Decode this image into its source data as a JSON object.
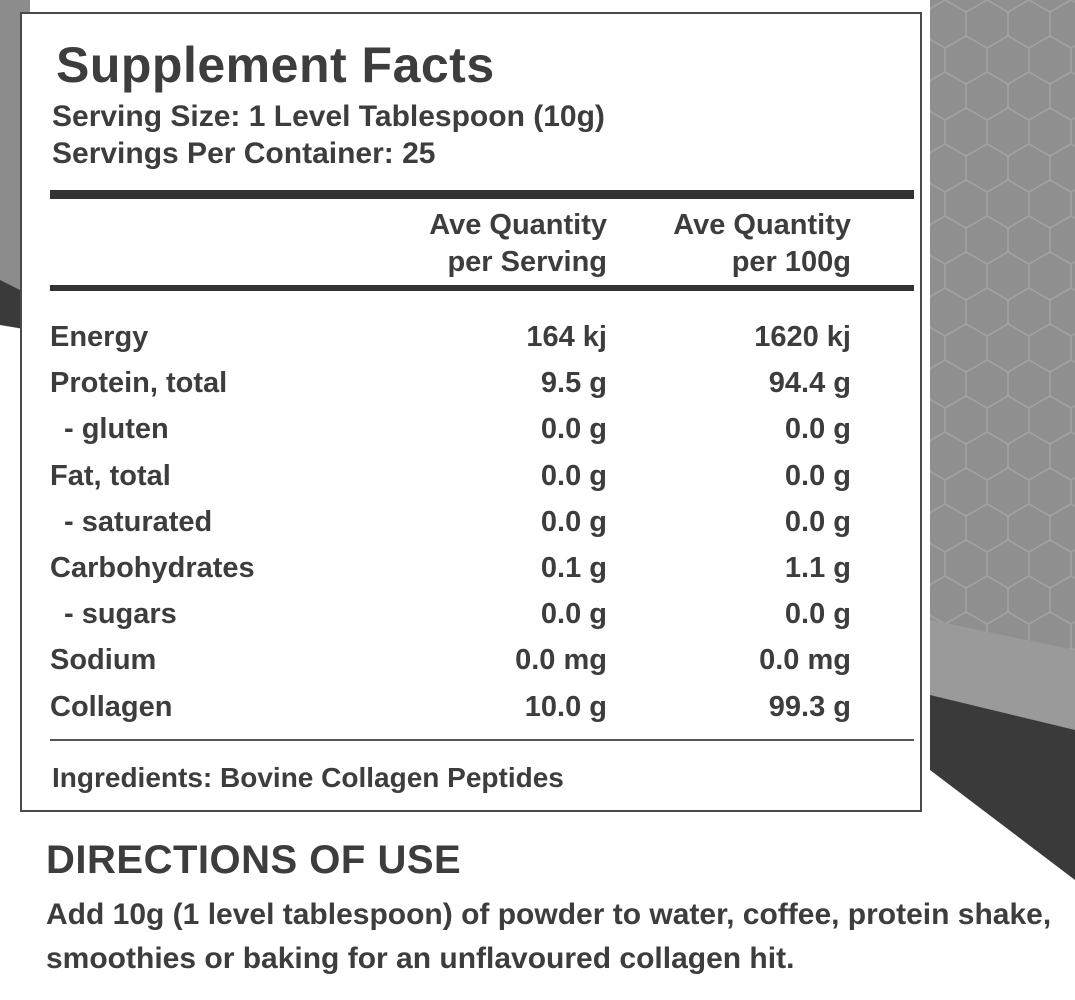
{
  "label": {
    "title": "Supplement Facts",
    "serving_size": "Serving Size: 1 Level Tablespoon (10g)",
    "servings_per_container": "Servings Per Container: 25",
    "columns": {
      "per_serving_line1": "Ave Quantity",
      "per_serving_line2": "per Serving",
      "per_100g_line1": "Ave Quantity",
      "per_100g_line2": "per 100g"
    },
    "rows": [
      {
        "name": "Energy",
        "per_serving": "164 kj",
        "per_100g": "1620 kj"
      },
      {
        "name": "Protein, total",
        "per_serving": "9.5 g",
        "per_100g": "94.4 g"
      },
      {
        "name": "- gluten",
        "per_serving": "0.0 g",
        "per_100g": "0.0 g"
      },
      {
        "name": "Fat, total",
        "per_serving": "0.0 g",
        "per_100g": "0.0 g"
      },
      {
        "name": "- saturated",
        "per_serving": "0.0 g",
        "per_100g": "0.0 g"
      },
      {
        "name": "Carbohydrates",
        "per_serving": "0.1 g",
        "per_100g": "1.1 g"
      },
      {
        "name": "- sugars",
        "per_serving": "0.0 g",
        "per_100g": "0.0 g"
      },
      {
        "name": "Sodium",
        "per_serving": "0.0 mg",
        "per_100g": "0.0 mg"
      },
      {
        "name": "Collagen",
        "per_serving": "10.0 g",
        "per_100g": "99.3 g"
      }
    ],
    "ingredients": "Ingredients: Bovine Collagen Peptides"
  },
  "directions": {
    "title": "DIRECTIONS OF USE",
    "text": "Add 10g (1 level tablespoon) of powder to water, coffee, protein shake, smoothies or baking for an unflavoured collagen hit."
  },
  "colors": {
    "background_grey": "#8f8f8f",
    "dark_stripe": "#3a3a3a",
    "text": "#3d3d3d"
  }
}
